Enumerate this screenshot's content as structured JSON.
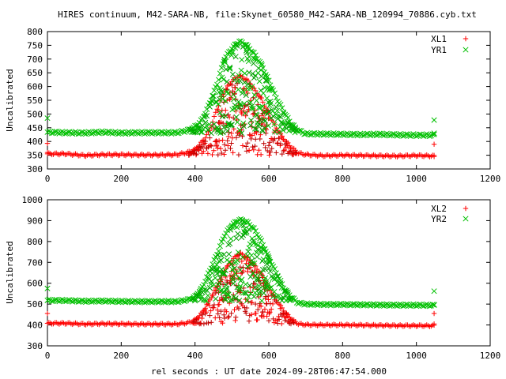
{
  "page_title": "HIRES continuum, M42-SARA-NB, file:Skynet_60580_M42-SARA-NB_120994_70886.cyb.txt",
  "x_axis_label": "rel seconds : UT date 2024-09-28T06:47:54.000",
  "colors": {
    "red": "#ff0000",
    "green": "#00c000",
    "dark_red": "#c00000",
    "dark_green": "#00a000"
  },
  "chart_data": [
    {
      "type": "scatter",
      "title": "HIRES continuum, M42-SARA-NB, file:Skynet_60580_M42-SARA-NB_120994_70886.cyb.txt",
      "xlabel": "",
      "ylabel": "Uncalibrated",
      "xlim": [
        0,
        1200
      ],
      "ylim": [
        300,
        800
      ],
      "xticks": [
        0,
        200,
        400,
        600,
        800,
        1000,
        1200
      ],
      "yticks": [
        300,
        350,
        400,
        450,
        500,
        550,
        600,
        650,
        700,
        750,
        800
      ],
      "legend_position": "top-right",
      "series": [
        {
          "name": "XL1",
          "color": "#ff0000",
          "marker": "plus",
          "baseline": 350,
          "peak": 645,
          "endpoint_markers": [
            [
              0,
              393
            ],
            [
              1048,
              390
            ],
            [
              0,
              360
            ],
            [
              1048,
              345
            ]
          ],
          "points": [
            [
              0,
              355
            ],
            [
              50,
              355
            ],
            [
              100,
              349
            ],
            [
              150,
              352
            ],
            [
              200,
              352
            ],
            [
              250,
              351
            ],
            [
              300,
              351
            ],
            [
              350,
              352
            ],
            [
              380,
              360
            ],
            [
              400,
              371
            ],
            [
              420,
              400
            ],
            [
              440,
              440
            ],
            [
              460,
              520
            ],
            [
              480,
              585
            ],
            [
              500,
              620
            ],
            [
              520,
              640
            ],
            [
              540,
              625
            ],
            [
              560,
              590
            ],
            [
              580,
              555
            ],
            [
              600,
              500
            ],
            [
              620,
              450
            ],
            [
              640,
              410
            ],
            [
              660,
              380
            ],
            [
              680,
              358
            ],
            [
              700,
              352
            ],
            [
              750,
              348
            ],
            [
              800,
              350
            ],
            [
              850,
              349
            ],
            [
              900,
              348
            ],
            [
              950,
              347
            ],
            [
              1000,
              349
            ],
            [
              1048,
              347
            ]
          ]
        },
        {
          "name": "YR1",
          "color": "#00c000",
          "marker": "cross",
          "baseline": 430,
          "peak": 770,
          "endpoint_markers": [
            [
              0,
              485
            ],
            [
              1048,
              478
            ],
            [
              1048,
              430
            ]
          ],
          "points": [
            [
              0,
              434
            ],
            [
              50,
              432
            ],
            [
              100,
              431
            ],
            [
              150,
              434
            ],
            [
              200,
              431
            ],
            [
              250,
              432
            ],
            [
              300,
              432
            ],
            [
              350,
              432
            ],
            [
              380,
              440
            ],
            [
              400,
              453
            ],
            [
              420,
              480
            ],
            [
              440,
              540
            ],
            [
              460,
              610
            ],
            [
              480,
              700
            ],
            [
              500,
              740
            ],
            [
              520,
              765
            ],
            [
              540,
              750
            ],
            [
              560,
              720
            ],
            [
              580,
              680
            ],
            [
              600,
              620
            ],
            [
              620,
              560
            ],
            [
              640,
              510
            ],
            [
              660,
              465
            ],
            [
              680,
              440
            ],
            [
              700,
              428
            ],
            [
              750,
              427
            ],
            [
              800,
              426
            ],
            [
              850,
              425
            ],
            [
              900,
              426
            ],
            [
              950,
              424
            ],
            [
              1000,
              423
            ],
            [
              1048,
              423
            ]
          ]
        }
      ]
    },
    {
      "type": "scatter",
      "title": "",
      "xlabel": "rel seconds : UT date 2024-09-28T06:47:54.000",
      "ylabel": "Uncalibrated",
      "xlim": [
        0,
        1200
      ],
      "ylim": [
        300,
        1000
      ],
      "xticks": [
        0,
        200,
        400,
        600,
        800,
        1000,
        1200
      ],
      "yticks": [
        300,
        400,
        500,
        600,
        700,
        800,
        900,
        1000
      ],
      "legend_position": "top-right",
      "series": [
        {
          "name": "XL2",
          "color": "#ff0000",
          "marker": "plus",
          "baseline": 405,
          "peak": 750,
          "endpoint_markers": [
            [
              0,
              455
            ],
            [
              1048,
              455
            ],
            [
              1048,
              405
            ]
          ],
          "points": [
            [
              0,
              408
            ],
            [
              50,
              408
            ],
            [
              100,
              404
            ],
            [
              150,
              406
            ],
            [
              200,
              405
            ],
            [
              250,
              404
            ],
            [
              300,
              404
            ],
            [
              350,
              404
            ],
            [
              380,
              410
            ],
            [
              400,
              424
            ],
            [
              420,
              460
            ],
            [
              440,
              520
            ],
            [
              460,
              590
            ],
            [
              480,
              660
            ],
            [
              500,
              710
            ],
            [
              520,
              745
            ],
            [
              540,
              725
            ],
            [
              560,
              690
            ],
            [
              580,
              640
            ],
            [
              600,
              580
            ],
            [
              620,
              520
            ],
            [
              640,
              470
            ],
            [
              660,
              430
            ],
            [
              680,
              405
            ],
            [
              700,
              401
            ],
            [
              750,
              400
            ],
            [
              800,
              400
            ],
            [
              850,
              399
            ],
            [
              900,
              398
            ],
            [
              950,
              397
            ],
            [
              1000,
              397
            ],
            [
              1048,
              396
            ]
          ]
        },
        {
          "name": "YR2",
          "color": "#00c000",
          "marker": "cross",
          "baseline": 515,
          "peak": 912,
          "endpoint_markers": [
            [
              0,
              575
            ],
            [
              1048,
              562
            ],
            [
              1048,
              495
            ]
          ],
          "points": [
            [
              0,
              518
            ],
            [
              50,
              517
            ],
            [
              100,
              514
            ],
            [
              150,
              515
            ],
            [
              200,
              513
            ],
            [
              250,
              512
            ],
            [
              300,
              512
            ],
            [
              350,
              512
            ],
            [
              380,
              520
            ],
            [
              400,
              535
            ],
            [
              420,
              580
            ],
            [
              440,
              660
            ],
            [
              460,
              740
            ],
            [
              480,
              830
            ],
            [
              500,
              880
            ],
            [
              520,
              905
            ],
            [
              540,
              895
            ],
            [
              560,
              860
            ],
            [
              580,
              800
            ],
            [
              600,
              720
            ],
            [
              620,
              650
            ],
            [
              640,
              580
            ],
            [
              660,
              535
            ],
            [
              680,
              505
            ],
            [
              700,
              500
            ],
            [
              750,
              498
            ],
            [
              800,
              498
            ],
            [
              850,
              497
            ],
            [
              900,
              496
            ],
            [
              950,
              495
            ],
            [
              1000,
              495
            ],
            [
              1048,
              494
            ]
          ]
        }
      ]
    }
  ]
}
